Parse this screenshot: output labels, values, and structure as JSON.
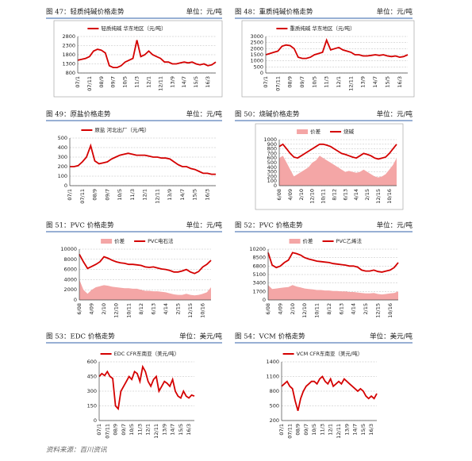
{
  "chart_data": [
    {
      "caption": "图 47：轻质纯碱价格走势",
      "unit": "单位：元/吨",
      "type": "line",
      "grid": true,
      "categories": [
        "07/1",
        null,
        null,
        "07/11",
        null,
        null,
        "08/9",
        null,
        null,
        "09/7",
        null,
        null,
        "10/5",
        null,
        null,
        "11/3",
        null,
        null,
        "12/1",
        null,
        null,
        "12/11",
        null,
        null,
        "13/9",
        null,
        null,
        "14/7",
        null,
        null,
        "15/5",
        null,
        null,
        "16/3",
        null,
        null
      ],
      "ylim": [
        800,
        2800
      ],
      "yticks": [
        800,
        1300,
        1800,
        2300,
        2800
      ],
      "series": [
        {
          "name": "轻质纯碱 华东地区（元/吨）",
          "type": "line",
          "color": "#d40000",
          "values": [
            1500,
            1550,
            1600,
            1700,
            2000,
            2100,
            2050,
            1900,
            1200,
            1100,
            1100,
            1200,
            1400,
            1500,
            1600,
            2600,
            1700,
            1800,
            2000,
            1800,
            1700,
            1600,
            1400,
            1400,
            1300,
            1300,
            1350,
            1400,
            1350,
            1400,
            1300,
            1250,
            1300,
            1200,
            1250,
            1400
          ]
        }
      ]
    },
    {
      "caption": "图 48：重质纯碱价格走势",
      "unit": "单位：元/吨",
      "type": "line",
      "grid": true,
      "categories": [
        "07/1",
        null,
        null,
        "07/11",
        null,
        null,
        "08/9",
        null,
        null,
        "09/7",
        null,
        null,
        "10/5",
        null,
        null,
        "11/3",
        null,
        null,
        "12/1",
        null,
        null,
        "12/11",
        null,
        null,
        "13/9",
        null,
        null,
        "14/7",
        null,
        null,
        "15/5",
        null,
        null,
        "16/3",
        null,
        null
      ],
      "ylim": [
        0,
        3000
      ],
      "yticks": [
        0,
        500,
        1000,
        1500,
        2000,
        2500,
        3000
      ],
      "series": [
        {
          "name": "重质纯碱 华东地区（元/吨）",
          "type": "line",
          "color": "#d40000",
          "values": [
            1500,
            1600,
            1700,
            1800,
            2200,
            2300,
            2250,
            2000,
            1300,
            1200,
            1200,
            1300,
            1500,
            1600,
            1700,
            2700,
            1900,
            2000,
            2100,
            1900,
            1800,
            1700,
            1500,
            1500,
            1400,
            1400,
            1450,
            1500,
            1450,
            1500,
            1400,
            1350,
            1400,
            1300,
            1350,
            1500
          ]
        }
      ]
    },
    {
      "caption": "图 49：原盐价格走势",
      "unit": "单位：元/吨",
      "type": "line",
      "grid": true,
      "categories": [
        "07/1",
        null,
        null,
        "07/11",
        null,
        null,
        "08/9",
        null,
        null,
        "09/7",
        null,
        null,
        "10/5",
        null,
        null,
        "11/3",
        null,
        null,
        "12/1",
        null,
        null,
        "12/11",
        null,
        null,
        "13/9",
        null,
        null,
        "14/7",
        null,
        null,
        "15/5",
        null,
        null,
        "16/3",
        null,
        null
      ],
      "ylim": [
        0,
        500
      ],
      "yticks": [
        0,
        100,
        200,
        300,
        400,
        500
      ],
      "series": [
        {
          "name": "原盐 河北出厂（元/吨）",
          "type": "line",
          "color": "#d40000",
          "values": [
            200,
            200,
            210,
            250,
            300,
            420,
            260,
            230,
            240,
            250,
            280,
            300,
            320,
            330,
            340,
            330,
            320,
            320,
            320,
            310,
            300,
            300,
            290,
            290,
            280,
            250,
            220,
            200,
            200,
            180,
            170,
            150,
            130,
            130,
            120,
            120
          ]
        }
      ]
    },
    {
      "caption": "图 50：烧碱价格走势",
      "unit": "单位：元/吨",
      "type": "line",
      "grid": true,
      "categories": [
        "6/08",
        null,
        null,
        "4/09",
        null,
        null,
        "2/10",
        null,
        null,
        "12/10",
        null,
        null,
        "10/11",
        null,
        null,
        "8/12",
        null,
        null,
        "6/13",
        null,
        null,
        "4/14",
        null,
        null,
        "2/15",
        null,
        null,
        "12/15",
        null,
        null,
        "10/16",
        null,
        null
      ],
      "ylim": [
        0,
        1000
      ],
      "yticks": [
        0,
        100,
        200,
        300,
        400,
        500,
        600,
        700,
        800,
        900,
        1000
      ],
      "series": [
        {
          "name": "价差",
          "type": "area",
          "color": "#f4a6a6",
          "values": [
            600,
            650,
            500,
            350,
            200,
            250,
            300,
            350,
            400,
            500,
            550,
            650,
            600,
            550,
            500,
            450,
            400,
            350,
            300,
            320,
            300,
            280,
            300,
            350,
            300,
            250,
            200,
            180,
            200,
            250,
            350,
            450,
            600
          ]
        },
        {
          "name": "烧碱",
          "type": "line",
          "color": "#d40000",
          "values": [
            850,
            900,
            800,
            700,
            620,
            600,
            650,
            700,
            750,
            800,
            850,
            900,
            900,
            880,
            850,
            800,
            750,
            700,
            680,
            650,
            620,
            600,
            650,
            700,
            680,
            650,
            600,
            580,
            600,
            620,
            700,
            800,
            900
          ]
        }
      ]
    },
    {
      "caption": "图 51：PVC 价格走势",
      "unit": "单位：元/吨",
      "type": "line",
      "grid": true,
      "categories": [
        "6/08",
        null,
        null,
        "4/09",
        null,
        null,
        "2/10",
        null,
        null,
        "12/10",
        null,
        null,
        "10/11",
        null,
        null,
        "8/12",
        null,
        null,
        "6/13",
        null,
        null,
        "4/14",
        null,
        null,
        "2/15",
        null,
        null,
        "12/15",
        null,
        null,
        "10/16",
        null,
        null
      ],
      "ylim": [
        0,
        10000
      ],
      "yticks": [
        0,
        2000,
        4000,
        6000,
        8000,
        10000
      ],
      "series": [
        {
          "name": "价差",
          "type": "area",
          "color": "#f4a6a6",
          "values": [
            4000,
            2000,
            1200,
            2000,
            2500,
            2700,
            2900,
            2800,
            2600,
            2500,
            2400,
            2300,
            2300,
            2200,
            2200,
            2000,
            1800,
            1800,
            1700,
            1700,
            1600,
            1500,
            1300,
            1100,
            1000,
            1000,
            1200,
            1000,
            900,
            1000,
            1200,
            1500,
            2500
          ]
        },
        {
          "name": "PVC电石法",
          "type": "line",
          "color": "#d40000",
          "values": [
            9000,
            7500,
            6200,
            6600,
            7000,
            7500,
            8500,
            8200,
            7800,
            7500,
            7300,
            7200,
            7000,
            7000,
            6900,
            6800,
            6500,
            6400,
            6500,
            6300,
            6100,
            6000,
            5800,
            5500,
            5500,
            5700,
            6000,
            5500,
            5200,
            5600,
            6500,
            7000,
            7800
          ]
        }
      ]
    },
    {
      "caption": "图 52：PVC 价格走势",
      "unit": "单位：元/吨",
      "type": "line",
      "grid": true,
      "categories": [
        "6/08",
        null,
        null,
        "4/09",
        null,
        null,
        "2/10",
        null,
        null,
        "12/10",
        null,
        null,
        "10/11",
        null,
        null,
        "8/12",
        null,
        null,
        "6/13",
        null,
        null,
        "4/14",
        null,
        null,
        "2/15",
        null,
        null,
        "12/15",
        null,
        null,
        "10/16",
        null,
        null
      ],
      "ylim": [
        0,
        10200
      ],
      "yticks": [
        0,
        1700,
        3400,
        5100,
        6800,
        8500,
        10200
      ],
      "series": [
        {
          "name": "价差",
          "type": "area",
          "color": "#f4a6a6",
          "values": [
            3000,
            2200,
            2300,
            2400,
            2500,
            2600,
            3000,
            2700,
            2500,
            2300,
            2200,
            2100,
            2000,
            2000,
            1900,
            1900,
            1800,
            1800,
            1700,
            1700,
            1600,
            1600,
            1500,
            1400,
            1300,
            1300,
            1400,
            1200,
            1100,
            1200,
            1300,
            1400,
            1700
          ]
        },
        {
          "name": "PVC乙烯法",
          "type": "line",
          "color": "#d40000",
          "values": [
            9500,
            7000,
            6500,
            6800,
            7500,
            8000,
            9500,
            9300,
            9000,
            8500,
            8200,
            8000,
            7800,
            7700,
            7600,
            7500,
            7300,
            7200,
            7100,
            7000,
            6800,
            6800,
            6600,
            6000,
            5800,
            5800,
            6000,
            5700,
            5600,
            5800,
            6000,
            6500,
            7500
          ]
        }
      ]
    },
    {
      "caption": "图 53：EDC 价格走势",
      "unit": "单位：美元/吨",
      "type": "line",
      "grid": true,
      "categories": [
        "07/1",
        null,
        null,
        "07/11",
        null,
        null,
        "08/9",
        null,
        null,
        "09/7",
        null,
        null,
        "10/5",
        null,
        null,
        "11/3",
        null,
        null,
        "12/1",
        null,
        null,
        "12/11",
        null,
        null,
        "13/9",
        null,
        null,
        "14/7",
        null,
        null,
        "15/5",
        null,
        null,
        "16/3",
        null,
        null
      ],
      "ylim": [
        0,
        600
      ],
      "yticks": [
        0,
        150,
        300,
        450,
        600
      ],
      "series": [
        {
          "name": "EDC CFR东南亚（美元/吨）",
          "type": "line",
          "color": "#d40000",
          "values": [
            450,
            480,
            460,
            500,
            450,
            430,
            150,
            120,
            300,
            350,
            400,
            450,
            420,
            500,
            480,
            400,
            550,
            500,
            400,
            350,
            420,
            450,
            300,
            350,
            400,
            380,
            350,
            420,
            300,
            250,
            230,
            300,
            250,
            230,
            260,
            250
          ]
        }
      ]
    },
    {
      "caption": "图 54：VCM 价格走势",
      "unit": "单位：美元/吨",
      "type": "line",
      "grid": true,
      "categories": [
        "07/1",
        null,
        null,
        "07/11",
        null,
        null,
        "08/9",
        null,
        null,
        "09/7",
        null,
        null,
        "10/5",
        null,
        null,
        "11/3",
        null,
        null,
        "12/1",
        null,
        null,
        "12/11",
        null,
        null,
        "13/9",
        null,
        null,
        "14/7",
        null,
        null,
        "15/5",
        null,
        null,
        "16/3",
        null,
        null
      ],
      "ylim": [
        200,
        1400
      ],
      "yticks": [
        200,
        500,
        800,
        1100,
        1400
      ],
      "series": [
        {
          "name": "VCM CFR东南亚（美元/吨）",
          "type": "line",
          "color": "#d40000",
          "values": [
            900,
            950,
            1000,
            900,
            850,
            600,
            400,
            650,
            800,
            900,
            950,
            1000,
            1000,
            950,
            1050,
            1100,
            1000,
            950,
            1050,
            900,
            950,
            1000,
            950,
            1050,
            1000,
            950,
            900,
            850,
            800,
            850,
            800,
            700,
            650,
            700,
            650,
            750
          ]
        }
      ]
    }
  ],
  "source": "资料来源：百川资讯"
}
